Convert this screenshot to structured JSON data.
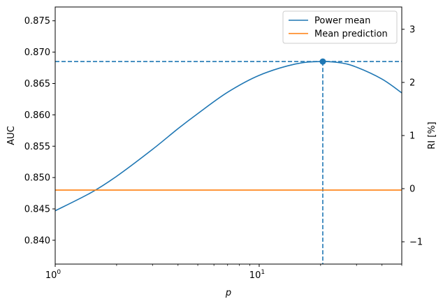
{
  "chart_data": {
    "type": "line",
    "xlabel": "p",
    "ylabel": "AUC",
    "y2label": "RI [%]",
    "xscale": "log",
    "xlim": [
      1,
      50
    ],
    "ylim": [
      0.8362,
      0.8772
    ],
    "y2lim": [
      -1.42,
      3.42
    ],
    "xticks": [
      {
        "value": 1,
        "base": "10",
        "exp": "0"
      },
      {
        "value": 10,
        "base": "10",
        "exp": "1"
      }
    ],
    "yticks": [
      {
        "value": 0.84,
        "label": "0.840"
      },
      {
        "value": 0.845,
        "label": "0.845"
      },
      {
        "value": 0.85,
        "label": "0.850"
      },
      {
        "value": 0.855,
        "label": "0.855"
      },
      {
        "value": 0.86,
        "label": "0.860"
      },
      {
        "value": 0.865,
        "label": "0.865"
      },
      {
        "value": 0.87,
        "label": "0.870"
      },
      {
        "value": 0.875,
        "label": "0.875"
      }
    ],
    "y2ticks": [
      {
        "value": -1,
        "label": "−1"
      },
      {
        "value": 0,
        "label": "0"
      },
      {
        "value": 1,
        "label": "1"
      },
      {
        "value": 2,
        "label": "2"
      },
      {
        "value": 3,
        "label": "3"
      }
    ],
    "series": [
      {
        "name": "Power mean",
        "color": "#1f77b4",
        "x": [
          1,
          1.5,
          2,
          3,
          4,
          5,
          7,
          10,
          15,
          20,
          25,
          30,
          40,
          50
        ],
        "y": [
          0.8447,
          0.8476,
          0.8502,
          0.8545,
          0.8578,
          0.8602,
          0.8636,
          0.8663,
          0.8681,
          0.8685,
          0.8683,
          0.8676,
          0.8657,
          0.8635
        ]
      },
      {
        "name": "Mean prediction",
        "color": "#ff7f0e",
        "x": [
          1,
          50
        ],
        "y": [
          0.848,
          0.848
        ]
      }
    ],
    "marker": {
      "x": 20.5,
      "y": 0.8685,
      "color": "#1f77b4"
    },
    "reference_lines": {
      "hline_y": 0.8685,
      "vline_x": 20.5,
      "style": "dashed",
      "color": "#1f77b4"
    },
    "legend": {
      "placement": "top-right"
    },
    "grid": false
  }
}
